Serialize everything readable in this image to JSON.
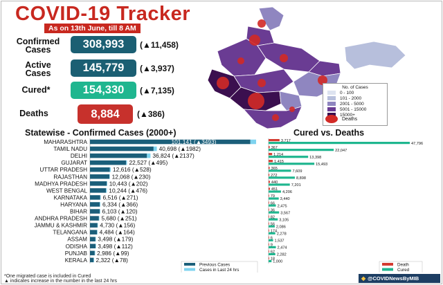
{
  "header": {
    "title": "COVID-19 Tracker",
    "subtitle": "As on 13th June, till 8 AM"
  },
  "stats": [
    {
      "label": "Confirmed Cases",
      "value": "308,993",
      "delta": "(▲11,458)",
      "color": "#1b5f73"
    },
    {
      "label": "Active Cases",
      "value": "145,779",
      "delta": "(▲3,937)",
      "color": "#1b5f73"
    },
    {
      "label": "Cured*",
      "value": "154,330",
      "delta": "(▲7,135)",
      "color": "#1fb68f"
    },
    {
      "label": "Deaths",
      "value": "8,884",
      "delta": "(▲386)",
      "color": "#c7312c"
    }
  ],
  "map_legend": {
    "title": "No. of Cases",
    "items": [
      {
        "label": "0 - 100",
        "color": "#dde3f0"
      },
      {
        "label": "101 - 2000",
        "color": "#b7bfdc"
      },
      {
        "label": "2001 - 5000",
        "color": "#8f86c0"
      },
      {
        "label": "5001 - 15000",
        "color": "#6a3c93"
      },
      {
        "label": "15000+",
        "color": "#3b0f4f"
      }
    ],
    "deaths_label": "Deaths"
  },
  "sections": {
    "left_title": "Statewise - Confirmed Cases (2000+)",
    "right_title": "Cured vs. Deaths"
  },
  "chart_data": [
    {
      "type": "bar",
      "orientation": "horizontal",
      "stacked": true,
      "categories": [
        "MAHARASHTRA",
        "TAMIL NADU",
        "DELHI",
        "GUJARAT",
        "UTTAR PRADESH",
        "RAJASTHAN",
        "MADHYA PRADESH",
        "WEST BENGAL",
        "KARNATAKA",
        "HARYANA",
        "BIHAR",
        "ANDHRA PRADESH",
        "JAMMU & KASHMIR",
        "TELANGANA",
        "ASSAM",
        "ODISHA",
        "PUNJAB",
        "KERALA"
      ],
      "totals": [
        101141,
        40698,
        36824,
        22527,
        12616,
        12068,
        10443,
        10244,
        6516,
        6334,
        6103,
        5680,
        4730,
        4484,
        3498,
        3498,
        2986,
        2322
      ],
      "labels": [
        "101,141 (▲3493)",
        "40,698 (▲1982)",
        "36,824 (▲2137)",
        "22,527 (▲495)",
        "12,616 (▲528)",
        "12,068 (▲230)",
        "10,443 (▲202)",
        "10,244 (▲476)",
        "6,516 (▲271)",
        "6,334 (▲366)",
        "6,103 (▲120)",
        "5,680 (▲251)",
        "4,730 (▲156)",
        "4,484 (▲164)",
        "3,498 (▲179)",
        "3,498 (▲112)",
        "2,986 (▲99)",
        "2,322 (▲78)"
      ],
      "series": [
        {
          "name": "Previous Cases",
          "values": [
            97648,
            38716,
            34687,
            22032,
            12088,
            11838,
            10241,
            9768,
            6245,
            5968,
            5983,
            5429,
            4574,
            4320,
            3319,
            3386,
            2887,
            2244
          ],
          "color": "#1b5f7a"
        },
        {
          "name": "Cases in Last 24 hrs",
          "values": [
            3493,
            1982,
            2137,
            495,
            528,
            230,
            202,
            476,
            271,
            366,
            120,
            251,
            156,
            164,
            179,
            112,
            99,
            78
          ],
          "color": "#7ed3ef"
        }
      ],
      "xlim": [
        0,
        101141
      ],
      "legend": "bottom-right"
    },
    {
      "type": "bar",
      "orientation": "horizontal",
      "grouped": true,
      "categories": [
        "MAHARASHTRA",
        "TAMIL NADU",
        "DELHI",
        "GUJARAT",
        "UTTAR PRADESH",
        "RAJASTHAN",
        "MADHYA PRADESH",
        "WEST BENGAL",
        "KARNATAKA",
        "HARYANA",
        "BIHAR",
        "ANDHRA PRADESH",
        "JAMMU & KASHMIR",
        "TELANGANA",
        "ASSAM",
        "ODISHA",
        "PUNJAB",
        "KERALA"
      ],
      "series": [
        {
          "name": "Death",
          "values": [
            3717,
            367,
            1214,
            1415,
            365,
            272,
            440,
            451,
            79,
            66,
            36,
            82,
            56,
            174,
            6,
            9,
            62,
            18
          ],
          "labels": [
            "3,717",
            "367",
            "1,214",
            "1,415",
            "365",
            "272",
            "440",
            "451",
            "79",
            "66",
            "36",
            "82",
            "56",
            "174",
            "6",
            "9",
            "62",
            "18"
          ],
          "color": "#d33b30"
        },
        {
          "name": "Cured",
          "values": [
            47796,
            22047,
            13398,
            15493,
            7609,
            8898,
            7201,
            4206,
            3440,
            2475,
            3567,
            3105,
            2086,
            2278,
            1537,
            2474,
            2282,
            1000
          ],
          "labels": [
            "47,796",
            "22,047",
            "13,398",
            "15,493",
            "7,609",
            "8,898",
            "7,201",
            "4,206",
            "3,440",
            "2,475",
            "3,567",
            "3,105",
            "2,086",
            "2,278",
            "1,537",
            "2,474",
            "2,282",
            "1,000"
          ],
          "color": "#1fb68f"
        }
      ],
      "xlim": [
        0,
        47796
      ],
      "legend": "bottom-right"
    }
  ],
  "footnotes": [
    "*One migrated case is included in Cured",
    "▲ indicates increase in the number in the last 24 hrs"
  ],
  "credit": {
    "handle": "@COVIDNewsByMIB",
    "icon": "twitter-bird-icon"
  }
}
